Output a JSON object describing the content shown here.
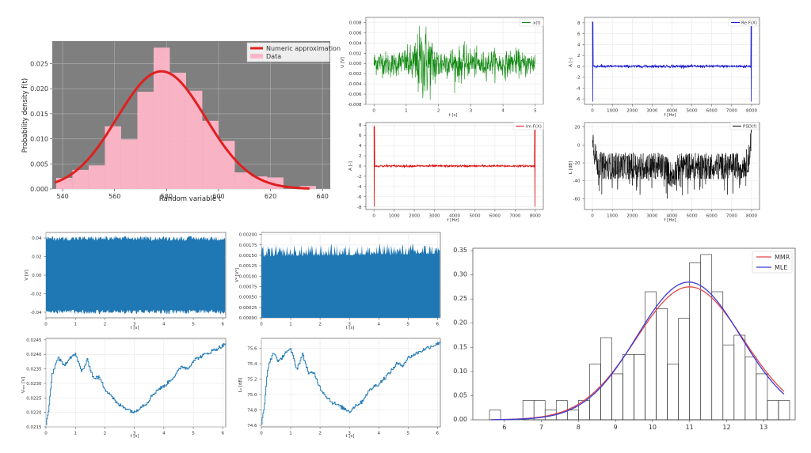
{
  "chart_data": [
    {
      "id": "hist",
      "type": "bar",
      "xlabel": "Random variable t",
      "ylabel": "Probability density f(t)",
      "xlim": [
        536,
        643
      ],
      "ylim": [
        0,
        0.0295
      ],
      "xticks": [
        540,
        560,
        580,
        600,
        620,
        640
      ],
      "yticks": [
        0.0,
        0.005,
        0.01,
        0.015,
        0.02,
        0.025
      ],
      "ytick_labels": [
        "0.000",
        "0.005",
        "0.010",
        "0.015",
        "0.020",
        "0.025"
      ],
      "background": "#7f7f7f",
      "grid": true,
      "legend_position": "top-right",
      "bin_width": 6.25,
      "bin_starts": [
        537.5,
        543.75,
        550,
        556.25,
        562.5,
        568.75,
        575,
        581.25,
        587.5,
        593.75,
        600,
        606.25,
        612.5,
        618.75,
        625,
        631.25
      ],
      "values": [
        0.0022,
        0.0038,
        0.0047,
        0.0125,
        0.0099,
        0.0194,
        0.0282,
        0.0232,
        0.0196,
        0.0136,
        0.0096,
        0.0033,
        0.0025,
        0.0023,
        0.0,
        0.0006
      ],
      "curve": {
        "mean": 578,
        "std": 17
      },
      "series": [
        {
          "name": "Numeric approximation",
          "color": "#e02020"
        },
        {
          "name": "Data",
          "color": "#ffb6c8"
        }
      ]
    },
    {
      "id": "xt",
      "type": "line",
      "xlabel": "t [s]",
      "ylabel": "U [V]",
      "xlim": [
        -0.25,
        5.25
      ],
      "ylim": [
        -0.008,
        0.009
      ],
      "xticks": [
        0,
        1,
        2,
        3,
        4,
        5
      ],
      "yticks": [
        -0.008,
        -0.006,
        -0.004,
        -0.002,
        0.0,
        0.002,
        0.004,
        0.006,
        0.008
      ],
      "ytick_labels": [
        "-0.008",
        "-0.006",
        "-0.004",
        "-0.002",
        "0.000",
        "0.002",
        "0.004",
        "0.006",
        "0.008"
      ],
      "series": [
        {
          "name": "x(t)",
          "color": "#128a12"
        }
      ]
    },
    {
      "id": "re",
      "type": "line",
      "xlabel": "f [Hz]",
      "ylabel": "A [-]",
      "xlim": [
        -400,
        8400
      ],
      "ylim": [
        -7,
        9
      ],
      "xticks": [
        0,
        1000,
        2000,
        3000,
        4000,
        5000,
        6000,
        7000,
        8000
      ],
      "yticks": [
        -6,
        -4,
        -2,
        0,
        2,
        4,
        6,
        8
      ],
      "series": [
        {
          "name": "Re F(X)",
          "color": "#1a1acc"
        }
      ]
    },
    {
      "id": "im",
      "type": "line",
      "xlabel": "f [Hz]",
      "ylabel": "A [-]",
      "xlim": [
        -400,
        8400
      ],
      "ylim": [
        -8.5,
        8.5
      ],
      "xticks": [
        0,
        1000,
        2000,
        3000,
        4000,
        5000,
        6000,
        7000,
        8000
      ],
      "yticks": [
        -8,
        -6,
        -4,
        -2,
        0,
        2,
        4,
        6,
        8
      ],
      "series": [
        {
          "name": "Im F(X)",
          "color": "#dd1111"
        }
      ]
    },
    {
      "id": "psd",
      "type": "line",
      "xlabel": "f [Hz]",
      "ylabel": "L [dB]",
      "xlim": [
        -400,
        8400
      ],
      "ylim": [
        -72,
        25
      ],
      "xticks": [
        0,
        1000,
        2000,
        3000,
        4000,
        5000,
        6000,
        7000,
        8000
      ],
      "yticks": [
        -60,
        -40,
        -20,
        0,
        20
      ],
      "series": [
        {
          "name": "PSD(f)",
          "color": "#000000"
        }
      ]
    },
    {
      "id": "v",
      "type": "line",
      "xlabel": "t [s]",
      "ylabel": "V [V]",
      "xlim": [
        0,
        6.1
      ],
      "ylim": [
        -0.046,
        0.046
      ],
      "xticks": [
        0,
        1,
        2,
        3,
        4,
        5,
        6
      ],
      "yticks": [
        -0.04,
        -0.02,
        0.0,
        0.02,
        0.04
      ],
      "ytick_labels": [
        "-0.04",
        "-0.02",
        "0.00",
        "0.02",
        "0.04"
      ],
      "series": [
        {
          "name": "",
          "color": "#1f77b4"
        }
      ]
    },
    {
      "id": "v2",
      "type": "line",
      "xlabel": "t [s]",
      "ylabel": "V² [V²]",
      "xlim": [
        0,
        6.1
      ],
      "ylim": [
        0,
        0.00205
      ],
      "xticks": [
        0,
        1,
        2,
        3,
        4,
        5,
        6
      ],
      "yticks": [
        0.0,
        0.00025,
        0.0005,
        0.00075,
        0.001,
        0.00125,
        0.0015,
        0.00175,
        0.002
      ],
      "ytick_labels": [
        "0.00000",
        "0.00025",
        "0.00050",
        "0.00075",
        "0.00100",
        "0.00125",
        "0.00150",
        "0.00175",
        "0.00200"
      ],
      "series": [
        {
          "name": "",
          "color": "#1f77b4"
        }
      ]
    },
    {
      "id": "vrms",
      "type": "line",
      "xlabel": "t [s]",
      "ylabel": "Vᵣₘₛ [V]",
      "xlim": [
        0,
        6.1
      ],
      "ylim": [
        0.0215,
        0.02455
      ],
      "xticks": [
        0,
        1,
        2,
        3,
        4,
        5,
        6
      ],
      "yticks": [
        0.0215,
        0.022,
        0.0225,
        0.023,
        0.0235,
        0.024,
        0.0245
      ],
      "ytick_labels": [
        "0.0215",
        "0.0220",
        "0.0225",
        "0.0230",
        "0.0235",
        "0.0240",
        "0.0245"
      ],
      "x": [
        0,
        0.1,
        0.2,
        0.4,
        0.6,
        0.8,
        1.0,
        1.2,
        1.4,
        1.6,
        1.8,
        2.0,
        2.2,
        2.4,
        2.6,
        2.8,
        3.0,
        3.2,
        3.4,
        3.6,
        3.8,
        4.0,
        4.2,
        4.4,
        4.6,
        4.8,
        5.0,
        5.2,
        5.4,
        5.6,
        5.8,
        6.0,
        6.1
      ],
      "values": [
        0.0216,
        0.0222,
        0.0233,
        0.0239,
        0.0236,
        0.0239,
        0.024,
        0.0234,
        0.0238,
        0.0232,
        0.0232,
        0.0228,
        0.0226,
        0.0223,
        0.0222,
        0.0221,
        0.022,
        0.0222,
        0.0223,
        0.0226,
        0.0228,
        0.0229,
        0.0231,
        0.0233,
        0.0236,
        0.0235,
        0.0238,
        0.0239,
        0.024,
        0.0241,
        0.0242,
        0.0243,
        0.0244
      ],
      "series": [
        {
          "name": "",
          "color": "#1f77b4"
        }
      ]
    },
    {
      "id": "lu",
      "type": "line",
      "xlabel": "t [s]",
      "ylabel": "Lᵤ [dB]",
      "xlim": [
        0,
        6.1
      ],
      "ylim": [
        74.58,
        75.73
      ],
      "xticks": [
        0,
        1,
        2,
        3,
        4,
        5,
        6
      ],
      "yticks": [
        74.6,
        74.8,
        75.0,
        75.2,
        75.4,
        75.6
      ],
      "ytick_labels": [
        "74.6",
        "74.8",
        "75.0",
        "75.2",
        "75.4",
        "75.6"
      ],
      "x": [
        0,
        0.1,
        0.2,
        0.4,
        0.6,
        0.8,
        1.0,
        1.2,
        1.4,
        1.6,
        1.8,
        2.0,
        2.2,
        2.4,
        2.6,
        2.8,
        3.0,
        3.2,
        3.4,
        3.6,
        3.8,
        4.0,
        4.2,
        4.4,
        4.6,
        4.8,
        5.0,
        5.2,
        5.4,
        5.6,
        5.8,
        6.0,
        6.1
      ],
      "values": [
        74.62,
        74.86,
        75.33,
        75.55,
        75.42,
        75.55,
        75.58,
        75.33,
        75.52,
        75.28,
        75.27,
        75.08,
        74.98,
        74.9,
        74.86,
        74.82,
        74.78,
        74.86,
        74.9,
        75.02,
        75.1,
        75.14,
        75.22,
        75.3,
        75.4,
        75.38,
        75.48,
        75.52,
        75.56,
        75.6,
        75.63,
        75.66,
        75.7
      ],
      "series": [
        {
          "name": "",
          "color": "#1f77b4"
        }
      ]
    },
    {
      "id": "mle",
      "type": "bar",
      "xlabel": "",
      "ylabel": "",
      "xlim": [
        5.15,
        13.85
      ],
      "ylim": [
        0,
        0.355
      ],
      "xticks": [
        6,
        7,
        8,
        9,
        10,
        11,
        12,
        13
      ],
      "yticks": [
        0.0,
        0.05,
        0.1,
        0.15,
        0.2,
        0.25,
        0.3,
        0.35
      ],
      "ytick_labels": [
        "0.00",
        "0.05",
        "0.10",
        "0.15",
        "0.20",
        "0.25",
        "0.30",
        "0.35"
      ],
      "legend_position": "top-right",
      "bin_width": 0.3,
      "bin_starts": [
        5.6,
        5.9,
        6.2,
        6.5,
        6.8,
        7.1,
        7.4,
        7.7,
        8.0,
        8.3,
        8.6,
        8.9,
        9.2,
        9.5,
        9.8,
        10.1,
        10.4,
        10.7,
        11.0,
        11.3,
        11.6,
        11.9,
        12.2,
        12.5,
        12.8,
        13.1,
        13.4
      ],
      "values": [
        0.02,
        0.0,
        0.0,
        0.04,
        0.04,
        0.02,
        0.04,
        0.02,
        0.04,
        0.115,
        0.17,
        0.095,
        0.135,
        0.135,
        0.265,
        0.23,
        0.115,
        0.21,
        0.325,
        0.342,
        0.265,
        0.155,
        0.175,
        0.13,
        0.095,
        0.04,
        0.04
      ],
      "series": [
        {
          "name": "MMR",
          "color": "#e04848",
          "mean": 11.0,
          "std": 1.45,
          "amp": 1.0
        },
        {
          "name": "MLE",
          "color": "#3a3ad8",
          "mean": 10.98,
          "std": 1.4,
          "amp": 1.0
        }
      ]
    }
  ]
}
